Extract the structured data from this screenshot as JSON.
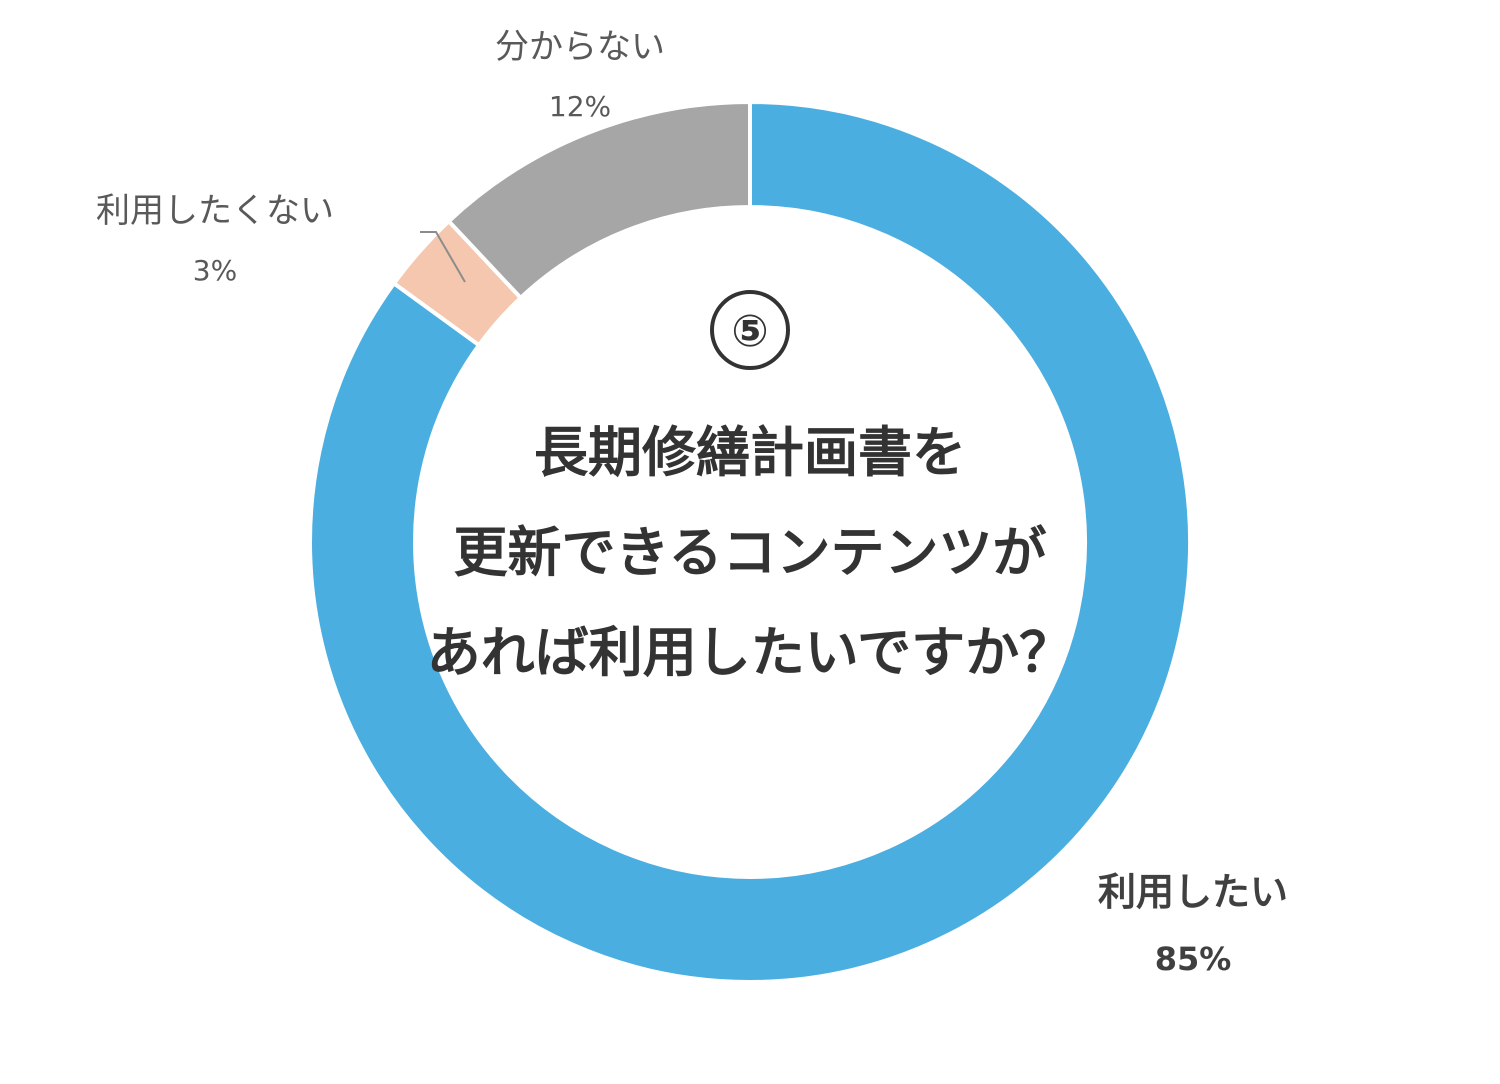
{
  "chart_data": {
    "type": "pie",
    "style": "donut",
    "number_label": "⑤",
    "center_text_lines": [
      "長期修繕計画書を",
      "更新できるコンテンツが",
      "あれば利用したいですか？"
    ],
    "slices": [
      {
        "label": "利用したい",
        "percent_label": "85%",
        "value": 85,
        "color": "#4aaee0"
      },
      {
        "label": "利用したくない",
        "percent_label": "3%",
        "value": 3,
        "color": "#f4c7ae"
      },
      {
        "label": "分からない",
        "percent_label": "12%",
        "value": 12,
        "color": "#a6a6a6"
      }
    ]
  }
}
